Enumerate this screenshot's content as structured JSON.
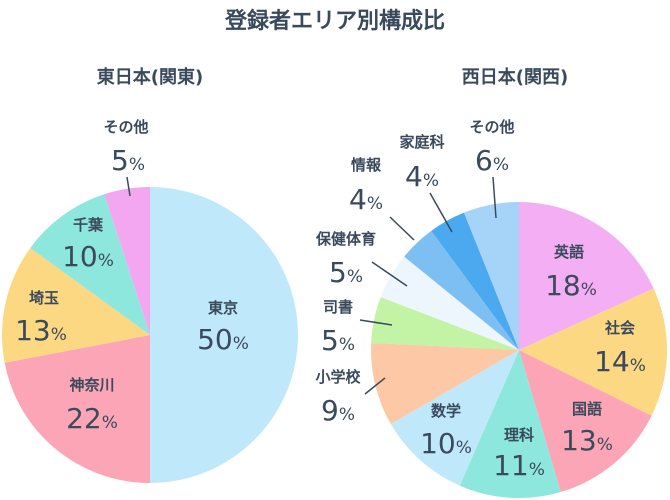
{
  "page_title": "登録者エリア別構成比",
  "chart_data": [
    {
      "type": "pie",
      "title": "東日本(関東)",
      "slices": [
        {
          "label": "東京",
          "value": 50,
          "color": "#bfe9fb"
        },
        {
          "label": "神奈川",
          "value": 22,
          "color": "#fca5b6"
        },
        {
          "label": "埼玉",
          "value": 13,
          "color": "#fcd882"
        },
        {
          "label": "千葉",
          "value": 10,
          "color": "#8ee7dc"
        },
        {
          "label": "その他",
          "value": 5,
          "color": "#f2a7f0"
        }
      ],
      "unit": "%"
    },
    {
      "type": "pie",
      "title": "西日本(関西)",
      "slices": [
        {
          "label": "英語",
          "value": 18,
          "color": "#f4aef4"
        },
        {
          "label": "社会",
          "value": 14,
          "color": "#fcd882"
        },
        {
          "label": "国語",
          "value": 13,
          "color": "#fca5b6"
        },
        {
          "label": "理科",
          "value": 11,
          "color": "#8ee7dc"
        },
        {
          "label": "数学",
          "value": 10,
          "color": "#bfe9fb"
        },
        {
          "label": "小学校",
          "value": 9,
          "color": "#fcc8a6"
        },
        {
          "label": "司書",
          "value": 5,
          "color": "#c3f3a4"
        },
        {
          "label": "保健体育",
          "value": 5,
          "color": "#eef6fd"
        },
        {
          "label": "情報",
          "value": 4,
          "color": "#7ebff3"
        },
        {
          "label": "家庭科",
          "value": 4,
          "color": "#4ba9ef"
        },
        {
          "label": "その他",
          "value": 6,
          "color": "#a6d3f8"
        }
      ],
      "unit": "%"
    }
  ]
}
